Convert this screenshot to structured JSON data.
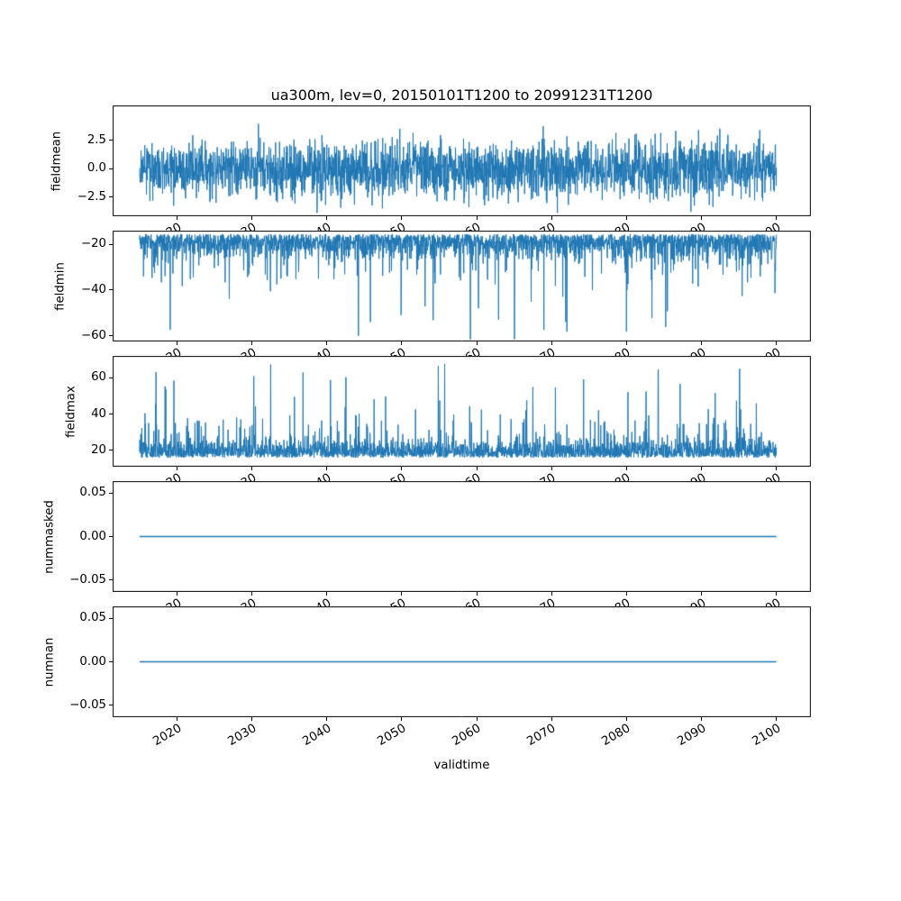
{
  "figure": {
    "title": "ua300m, lev=0, 20150101T1200 to 20991231T1200",
    "xlabel": "validtime",
    "bg": "#ffffff",
    "line_color": "#1f77b4",
    "spine_color": "#000000",
    "text_color": "#000000"
  },
  "x_axis": {
    "label": "validtime",
    "ticks": [
      2020,
      2030,
      2040,
      2050,
      2060,
      2070,
      2080,
      2090,
      2100
    ],
    "tick_labels": [
      "2020",
      "2030",
      "2040",
      "2050",
      "2060",
      "2070",
      "2080",
      "2090",
      "2100"
    ],
    "xlim": [
      2011.4,
      2104.6
    ],
    "data_start": 2015.0,
    "data_end": 2100.0
  },
  "chart_data": [
    {
      "type": "line",
      "name": "fieldmean",
      "ylabel": "fieldmean",
      "yticks": [
        2.5,
        0.0,
        -2.5
      ],
      "ytick_labels": [
        "2.5",
        "0.0",
        "−2.5"
      ],
      "ylim": [
        -4.2,
        5.6
      ],
      "series": {
        "seed": 101,
        "n": 2600,
        "base": 0,
        "std": 1.25,
        "abs": false,
        "sign": 1,
        "spikes": [],
        "clip": [
          -3.9,
          4.7
        ],
        "lw": 1.0
      },
      "summary": {
        "mean": 0.0,
        "min": -3.9,
        "max": 4.7,
        "description": "dense noisy series centered on 0"
      }
    },
    {
      "type": "line",
      "name": "fieldmin",
      "ylabel": "fieldmin",
      "yticks": [
        -20,
        -40,
        -60
      ],
      "ytick_labels": [
        "−20",
        "−40",
        "−60"
      ],
      "ylim": [
        -62.5,
        -14
      ],
      "series": {
        "seed": 202,
        "n": 2600,
        "base": -15.5,
        "std": 5.0,
        "abs": true,
        "sign": -1,
        "spikes": [
          {
            "prob": 0.05,
            "lo": 4,
            "hi": 18
          },
          {
            "prob": 0.009,
            "lo": 18,
            "hi": 44
          }
        ],
        "clip": [
          -61.5,
          -14.5
        ],
        "lw": 1.0
      },
      "summary": {
        "typical": -20,
        "min": -61,
        "max": -15,
        "description": "dense band -15..-30 with downward spikes to about -61"
      }
    },
    {
      "type": "line",
      "name": "fieldmax",
      "ylabel": "fieldmax",
      "yticks": [
        60,
        40,
        20
      ],
      "ytick_labels": [
        "60",
        "40",
        "20"
      ],
      "ylim": [
        11,
        72
      ],
      "series": {
        "seed": 303,
        "n": 2600,
        "base": 16,
        "std": 4.5,
        "abs": true,
        "sign": 1,
        "spikes": [
          {
            "prob": 0.06,
            "lo": 4,
            "hi": 20
          },
          {
            "prob": 0.01,
            "lo": 20,
            "hi": 48
          }
        ],
        "clip": [
          13,
          69
        ],
        "lw": 1.0
      },
      "summary": {
        "typical": 25,
        "min": 16,
        "max": 69,
        "description": "dense band 16..35 with upward spikes to about 69"
      }
    },
    {
      "type": "line",
      "name": "nummasked",
      "ylabel": "nummasked",
      "yticks": [
        0.05,
        0.0,
        -0.05
      ],
      "ytick_labels": [
        "0.05",
        "0.00",
        "−0.05"
      ],
      "ylim": [
        -0.064,
        0.064
      ],
      "series": {
        "seed": 404,
        "n": 200,
        "base": 0,
        "std": 0,
        "abs": false,
        "sign": 1,
        "spikes": [],
        "clip": [
          0,
          0
        ],
        "lw": 1.5
      },
      "summary": {
        "constant": 0.0,
        "description": "flat line at exactly 0"
      }
    },
    {
      "type": "line",
      "name": "numnan",
      "ylabel": "numnan",
      "yticks": [
        0.05,
        0.0,
        -0.05
      ],
      "ytick_labels": [
        "0.05",
        "0.00",
        "−0.05"
      ],
      "ylim": [
        -0.064,
        0.064
      ],
      "series": {
        "seed": 505,
        "n": 200,
        "base": 0,
        "std": 0,
        "abs": false,
        "sign": 1,
        "spikes": [],
        "clip": [
          0,
          0
        ],
        "lw": 1.5
      },
      "summary": {
        "constant": 0.0,
        "description": "flat line at exactly 0"
      }
    }
  ]
}
